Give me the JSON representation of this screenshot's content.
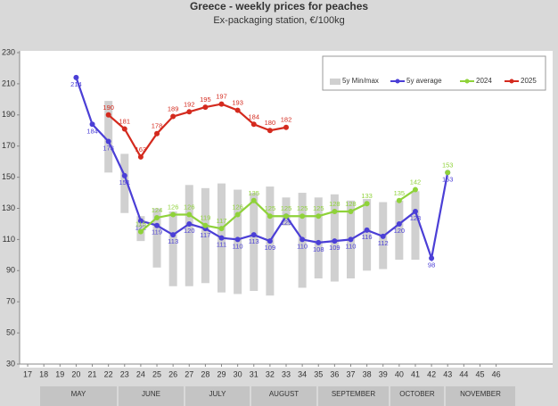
{
  "chart_data": {
    "type": "line",
    "title": "Greece - weekly prices for peaches",
    "subtitle": "Ex-packaging station, €/100kg",
    "x": [
      20,
      21,
      22,
      23,
      24,
      25,
      26,
      27,
      28,
      29,
      30,
      31,
      32,
      33,
      34,
      35,
      36,
      37,
      38,
      39,
      40,
      41,
      42,
      43
    ],
    "series": [
      {
        "name": "5y Min/max",
        "color": "#d0d0d0",
        "low": [
          null,
          null,
          153,
          127,
          109,
          92,
          80,
          80,
          82,
          76,
          75,
          77,
          74,
          119,
          79,
          85,
          83,
          85,
          90,
          91,
          97,
          97,
          null,
          null
        ],
        "high": [
          null,
          null,
          199,
          165,
          125,
          130,
          128,
          145,
          143,
          146,
          142,
          140,
          144,
          137,
          140,
          137,
          139,
          135,
          136,
          134,
          135,
          141,
          null,
          null
        ]
      },
      {
        "name": "5y average",
        "color": "#4b3fd6",
        "values": [
          214,
          184,
          173,
          151,
          122,
          119,
          113,
          120,
          117,
          111,
          110,
          113,
          109,
          125,
          110,
          108,
          109,
          110,
          116,
          112,
          120,
          128,
          98,
          153
        ]
      },
      {
        "name": "2024",
        "color": "#8fd23a",
        "values": [
          null,
          null,
          null,
          null,
          115,
          124,
          126,
          126,
          119,
          117,
          126,
          135,
          125,
          125,
          125,
          125,
          128,
          128,
          133,
          null,
          135,
          142,
          null,
          153
        ]
      },
      {
        "name": "2025",
        "color": "#d42a1e",
        "values": [
          null,
          null,
          190,
          181,
          163,
          178,
          189,
          192,
          195,
          197,
          193,
          184,
          180,
          182,
          null,
          null,
          null,
          null,
          null,
          null,
          null,
          null,
          null,
          null
        ]
      }
    ],
    "xlim": [
      16.5,
      49.5
    ],
    "xticks": [
      17,
      18,
      19,
      20,
      21,
      22,
      23,
      24,
      25,
      26,
      27,
      28,
      29,
      30,
      31,
      32,
      33,
      34,
      35,
      36,
      37,
      38,
      39,
      40,
      41,
      42,
      43,
      44,
      45,
      46
    ],
    "ylim": [
      30,
      230
    ],
    "yticks": [
      30,
      50,
      70,
      90,
      110,
      130,
      150,
      170,
      190,
      210,
      230
    ],
    "months": [
      "MAY",
      "JUNE",
      "JULY",
      "AUGUST",
      "SEPTEMBER",
      "OCTOBER",
      "NOVEMBER"
    ]
  }
}
